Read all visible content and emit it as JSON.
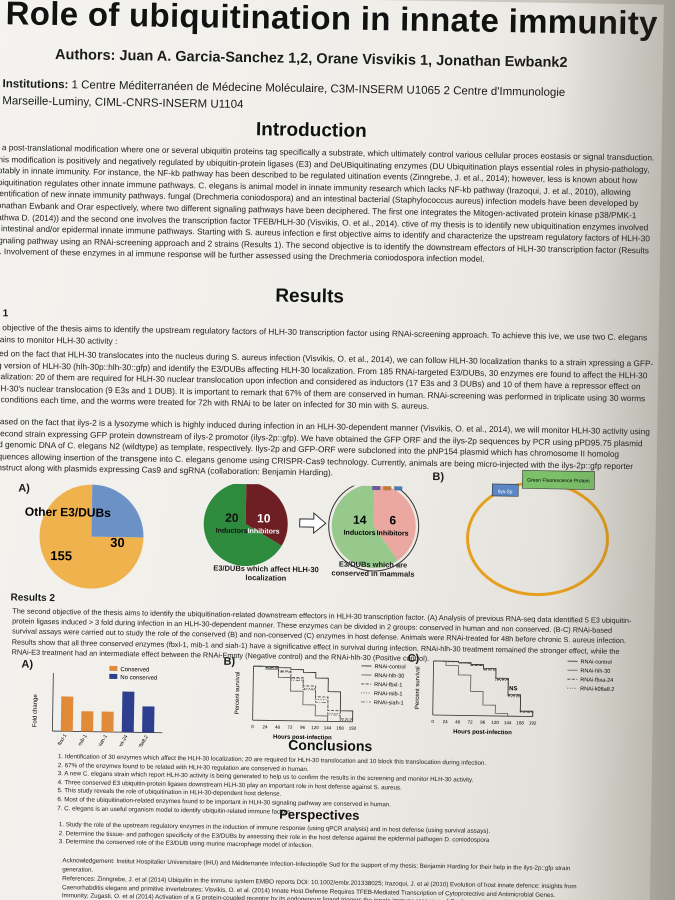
{
  "title": "Role of ubiquitination in innate immunity",
  "authors_line": "Authors: Juan A. Garcia-Sanchez 1,2, Orane Visvikis 1, Jonathan Ewbank2",
  "institutions": {
    "label": "Institutions:",
    "line1": "1 Centre Méditerranéen de Médecine Moléculaire, C3M-INSERM U1065  2 Centre d'Immunologie",
    "line2": "Marseille-Luminy, CIML-CNRS-INSERM U1104"
  },
  "introduction": {
    "heading": "Introduction",
    "text": "is a post-translational modification where one or several ubiquitin proteins tag specifically a substrate, which ultimately control various cellular proces eostasis or signal transduction. This modification is positively and negatively regulated by ubiquitin-protein ligases (E3) and DeUBiquitinating enzymes (DU Ubiquitination plays essential roles in physio-pathology, notably in innate immunity. For instance, the NF-kb pathway has been described to be regulated uitination events (Zinngrebe, J. et al., 2014); however, less is known about how ubiquitination regulates other innate immune pathways. C. elegans is animal model in innate immunity research which lacks NF-kb pathway (Irazoqui, J. et al., 2010), allowing identification of new innate immunity pathways. fungal (Drechmeria coniodospora) and an intestinal bacterial (Staphylococcus aureus) infection models have been developed by Jonathan Ewbank and Orar espectively, where two different signaling pathways have been deciphered. The first one integrates the Mitogen-activated protein kinase p38/PMK-1 pathwa D. (2014)) and the second one involves the transcription factor TFEB/HLH-30 (Visvikis, O. et al., 2014). ctive of my thesis is to identify new ubiquitination enzymes involved in intestinal and/or epidermal innate immune pathways. Starting with S. aureus infection e first objective aims to identify and characterize the upstream regulatory factors of HLH-30 signaling pathway using an RNAi-screening approach and 2 strains (Results 1). The second objective is to identify the downstream effectors of HLH-30 transcription factor (Results 2). Involvement of these enzymes in al immune response will be further assessed using the Drechmeria coniodospora infection model."
  },
  "results": {
    "heading": "Results",
    "r1_heading": "ts 1",
    "r1_intro": "rst objective of the thesis aims to identify the upstream regulatory factors of HLH-30 transcription factor using RNAi-screening approach. To achieve this ive, we use two C. elegans strains to monitor HLH-30 activity :",
    "r1_a": "ased on the fact that HLH-30 translocates into the nucleus during S. aureus infection (Visvikis, O. et al., 2014), we can follow HLH-30 localization thanks to a strain xpressing a GFP-tag version of HLH-30 (hlh-30p::hlh-30::gfp) and identify the E3/DUBs affecting HLH-30 localization. From 185 RNAi-targeted E3/DUBs, 30 enzymes ere found to affect the HLH-30 localization: 20 of them are required for HLH-30 nuclear translocation upon infection and considered as inductors (17 E3s and 3 DUBs) and 10 of them have a repressor effect on HLH-30's nuclear translocation (9 E3s and 1 DUB). It is important to remark that 67% of them are conserved in human. RNAi-screening was performed in triplicate using 30 worms by conditions each time, and the worms were treated for 72h with RNAi to be later on infected for 30 min with S. aureus.",
    "r1_b": ") Based on the fact that ilys-2 is a lysozyme which is highly induced during infection in an HLH-30-dependent manner (Visvikis, O. et al., 2014), we will monitor HLH-30 activity using a second strain expressing GFP protein downstream of ilys-2 promotor (ilys-2p::gfp). We have obtained the GFP ORF and the ilys-2p sequences by PCR using pPD95.75 plasmid and genomic DNA of C. elegans N2 (wildtype) as template, respectively. Ilys-2p and GFP-ORF were subcloned into the pNP154 plasmid which has chromosome II homolog sequences allowing insertion of the transgene into C. elegans genome using CRISPR-Cas9 technology. Currently, animals are being micro-injected with the ilys-2p::gfp reporter construct along with plasmids expressing Cas9 and sgRNA (collaboration: Benjamin Harding).",
    "r2_heading": "Results 2",
    "r2_text": "The second objective of the thesis aims to identify the ubiquitination-related downstream effectors in HLH-30 transcription factor. (A) Analysis of previous RNA-seq data identified 5 E3 ubiquitin-protein ligases induced > 3 fold during infection in an HLH-30-dependent manner. These enzymes can be divided in 2 groups: conserved in human and non conserved. (B-C) RNAi-based survival assays were carried out to study the role of the conserved (B) and non-conserved (C) enzymes in host defense. Animals were RNAi-treated for 48h before chronic S. aureus infection. Results show that all three conserved enzymes (fbxl-1, mib-1 and siah-1) have a significative effect in survival during infection. RNAi-hlh-30 treatment remained the stronger effect, while the RNAi-E3 treatment had an intermediate effect between the RNAi-Empty (Negative control) and the RNAi-hlh-30 (Positive control)."
  },
  "figure1": {
    "panel_a": "A)",
    "panel_b": "B)",
    "pie1_other_label": "Other E3/DUBs",
    "pie1_other_value": "155",
    "pie1_found_value": "30",
    "pie2_inductors_value": "20",
    "pie2_inductors_label": "Inductors",
    "pie2_inhibitors_value": "10",
    "pie2_inhibitors_label": "Inhibitors",
    "pie2_caption": "E3/DUBs which affect HLH-30 localization",
    "pie3_inductors_value": "14",
    "pie3_inductors_label": "Inductors",
    "pie3_inhibitors_value": "6",
    "pie3_inhibitors_label": "Inhibitors",
    "pie3_caption": "E3/DUBs which are conserved in mammals",
    "plasmid_gfp": "Green Fluorescence Protein",
    "plasmid_promoter": "ilys-2p",
    "colors": {
      "blue": "#6b91c6",
      "orange": "#f0b24d",
      "green": "#2e8a3c",
      "darkred": "#6e1f24",
      "lightgreen": "#98c98c",
      "pink": "#eaa8a0"
    }
  },
  "figure2": {
    "panel_a": "A)",
    "panel_b": "B)",
    "panel_c": "C)",
    "bar_legend_conserved": "Conserved",
    "bar_legend_nonconserved": "No conserved",
    "bar_ylabel": "Fold change",
    "surv_ylabel": "Percent survival",
    "surv_xlabel": "Hours post-infection",
    "b_legend": [
      "RNAi-control",
      "RNAi-hlh-30",
      "RNAi-fbxl-1",
      "RNAi-mib-1",
      "RNAi-siah-1"
    ],
    "c_legend": [
      "RNAi-control",
      "RNAi-hlh-30",
      "RNAi-fbxa-24",
      "RNAi-k08a8.2"
    ],
    "ns_label": "NS",
    "b_xticks": [
      "0",
      "24",
      "48",
      "72",
      "96",
      "120",
      "144",
      "168",
      "192"
    ],
    "c_xticks": [
      "0",
      "24",
      "48",
      "72",
      "96",
      "120",
      "144",
      "168",
      "192"
    ]
  },
  "chart_data": [
    {
      "type": "bar",
      "title": "",
      "xlabel": "",
      "ylabel": "Fold change",
      "categories": [
        "fbxl-1",
        "mib-1",
        "siah-1",
        "fbxa-24",
        "k08a8.2"
      ],
      "values": [
        6,
        3.5,
        3.5,
        7,
        4.5
      ],
      "groups": [
        "Conserved",
        "Conserved",
        "Conserved",
        "No conserved",
        "No conserved"
      ],
      "colors": [
        "#e08a3a",
        "#e08a3a",
        "#e08a3a",
        "#2f3f8f",
        "#2f3f8f"
      ],
      "ylim": [
        0,
        10
      ]
    },
    {
      "type": "line",
      "title": "",
      "xlabel": "Hours post-infection",
      "ylabel": "Percent survival",
      "x": [
        0,
        24,
        48,
        72,
        96,
        120,
        144,
        168,
        192
      ],
      "ylim": [
        0,
        100
      ],
      "series": [
        {
          "name": "RNAi-control",
          "values": [
            100,
            100,
            98,
            95,
            90,
            80,
            55,
            20,
            0
          ]
        },
        {
          "name": "RNAi-hlh-30",
          "values": [
            100,
            95,
            80,
            55,
            30,
            10,
            0,
            0,
            0
          ]
        },
        {
          "name": "RNAi-fbxl-1",
          "values": [
            100,
            98,
            92,
            80,
            65,
            45,
            20,
            5,
            0
          ]
        },
        {
          "name": "RNAi-mib-1",
          "values": [
            100,
            98,
            90,
            78,
            60,
            40,
            15,
            2,
            0
          ]
        },
        {
          "name": "RNAi-siah-1",
          "values": [
            100,
            97,
            90,
            75,
            58,
            35,
            12,
            0,
            0
          ]
        }
      ]
    },
    {
      "type": "line",
      "title": "",
      "xlabel": "Hours post-infection",
      "ylabel": "Percent survival",
      "x": [
        0,
        24,
        48,
        72,
        96,
        120,
        144,
        168,
        192
      ],
      "ylim": [
        0,
        100
      ],
      "series": [
        {
          "name": "RNAi-control",
          "values": [
            100,
            100,
            98,
            95,
            88,
            70,
            40,
            10,
            0
          ]
        },
        {
          "name": "RNAi-hlh-30",
          "values": [
            100,
            92,
            75,
            45,
            20,
            5,
            0,
            0,
            0
          ]
        },
        {
          "name": "RNAi-fbxa-24",
          "values": [
            100,
            100,
            97,
            93,
            85,
            68,
            38,
            8,
            0
          ]
        },
        {
          "name": "RNAi-k08a8.2",
          "values": [
            100,
            99,
            97,
            94,
            86,
            66,
            36,
            9,
            0
          ]
        }
      ]
    }
  ],
  "conclusions": {
    "heading": "Conclusions",
    "items": [
      "1.  Identification of 30 enzymes which affect the HLH-30 localization; 20 are required for HLH-30 translocation and 10 block this translocation during infection.",
      "2.  67% of the enzymes found to be related with HLH-30 regulation are conserved in human.",
      "3.  A new C. elegans strain which report HLH-30 activity is being generated to help us to confirm the results in the screening and monitor HLH-30 activity.",
      "4.  Three conserved E3 ubiquitin-protein ligases downstream HLH-30 play an important role in host defense against S. aureus.",
      "5.  This study reveals the role of ubiquitination in HLH-30-dependent host defense.",
      "6.  Most of the ubiquitination-related enzymes found to be important in HLH-30 signaling pathway are conserved in human.",
      "7.  C. elegans is an useful organism model to identify ubiquitin-related immune factors"
    ]
  },
  "perspectives": {
    "heading": "Perspectives",
    "items": [
      "1.  Study the role of the upstream regulatory enzymes in the induction of immune response (using qPCR analysis) and in host defense (using survival assays).",
      "2.  Determine the tissue- and pathogen specificity of the E3/DUBs by assessing their role in the host defense against the epidermal pathogen D. coniodospora",
      "3.  Determine the conserved role of the E3/DUB using murine macrophage model of infection."
    ]
  },
  "acknowledgement": "Acknowledgement: Institut Hospitalier Universitaire (IHU) and Méditerranée Infection-Infectiopôle Sud for the support of my thesis; Benjamin Harding for their help in the ilys-2p::gfp strain generation.",
  "references": "References: Zinngrebe, J. et al (2014) Ubiquitin in the immune system EMBO reports DOI: 10.1002/embr.201338025; Irazoqui, J. et al (2010) Evolution of host innate defence: insights from Caenorhabditis elegans and primitive invertebrates; Visvikis, O. et al. (2014) Innate Host Defense Requires TFEB-Mediated Transcription of Cytoprotective and Antimicrobial Genes. Immunity; Zugasti, O. et al (2014) Activation of a G protein-coupled receptor by its endogenous ligand triggers the innate immune response of C. elegans. immunol.2014.05.002."
}
